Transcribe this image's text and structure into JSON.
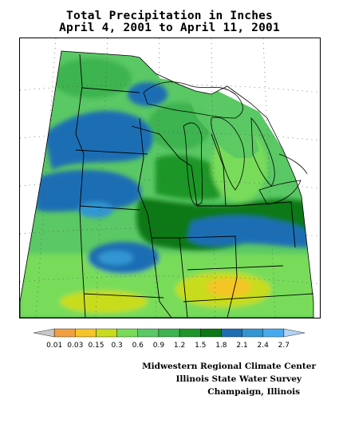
{
  "title": {
    "line1": "Total Precipitation in Inches",
    "line2": "April 4, 2001 to April 11, 2001"
  },
  "legend": {
    "labels": [
      "0.01",
      "0.03",
      "0.15",
      "0.3",
      "0.6",
      "0.9",
      "1.2",
      "1.5",
      "1.8",
      "2.1",
      "2.4",
      "2.7"
    ],
    "colors": [
      "#c8c8c8",
      "#f0a040",
      "#f5c528",
      "#c8dc1e",
      "#78dc5a",
      "#5ac864",
      "#3cb450",
      "#1e9628",
      "#0a7814",
      "#1e6eb4",
      "#3296d2",
      "#46aaf0",
      "#b4d2f5"
    ]
  },
  "credits": {
    "line1": "Midwestern Regional Climate Center",
    "line2": "Illinois State Water Survey",
    "line3": "Champaign, Illinois"
  },
  "colors": {
    "border_line": "#000000",
    "grid_dots": "#555555",
    "no_data": "#ffffff"
  }
}
